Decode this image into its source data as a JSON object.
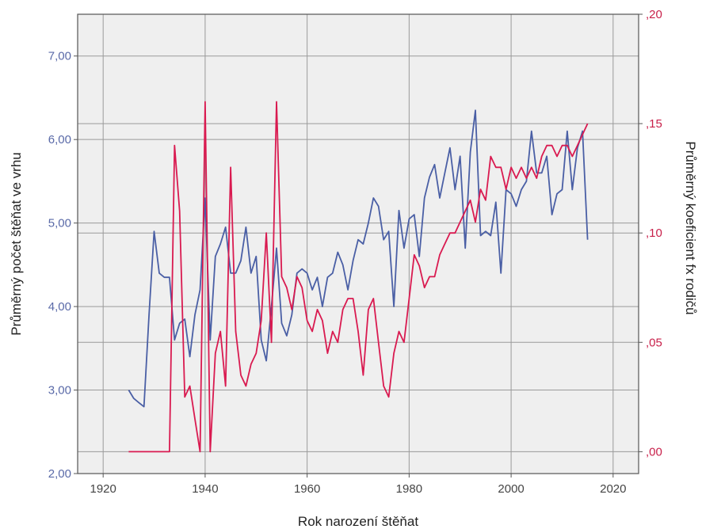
{
  "chart_data": {
    "type": "line",
    "title": "",
    "xlabel": "Rok narození štěňat",
    "ylabel_left": "Průměrný počet štěňat ve vrhu",
    "ylabel_right": "Průměrný koeficient fx rodičů",
    "xlim": [
      1915,
      2025
    ],
    "ylim_left": [
      2.0,
      7.5
    ],
    "ylim_right": [
      -0.01,
      0.2
    ],
    "x_ticks": [
      "1920",
      "1940",
      "1960",
      "1980",
      "2000",
      "2020"
    ],
    "x_tick_values": [
      1920,
      1940,
      1960,
      1980,
      2000,
      2020
    ],
    "left_ticks": [
      "2,00",
      "3,00",
      "4,00",
      "5,00",
      "6,00",
      "7,00"
    ],
    "left_tick_values": [
      2,
      3,
      4,
      5,
      6,
      7
    ],
    "right_ticks": [
      ",00",
      ",05",
      ",10",
      ",15",
      ",20"
    ],
    "right_tick_values": [
      0.0,
      0.05,
      0.1,
      0.15,
      0.2
    ],
    "grid": true,
    "colors": {
      "left_series": "#4a5fa5",
      "right_series": "#d91a50",
      "plot_bg": "#efefef"
    },
    "series": [
      {
        "axis": "left",
        "color": "#4a5fa5",
        "x": [
          1925,
          1926,
          1927,
          1928,
          1929,
          1930,
          1931,
          1932,
          1933,
          1934,
          1935,
          1936,
          1937,
          1938,
          1939,
          1940,
          1941,
          1942,
          1943,
          1944,
          1945,
          1946,
          1947,
          1948,
          1949,
          1950,
          1951,
          1952,
          1953,
          1954,
          1955,
          1956,
          1957,
          1958,
          1959,
          1960,
          1961,
          1962,
          1963,
          1964,
          1965,
          1966,
          1967,
          1968,
          1969,
          1970,
          1971,
          1972,
          1973,
          1974,
          1975,
          1976,
          1977,
          1978,
          1979,
          1980,
          1981,
          1982,
          1983,
          1984,
          1985,
          1986,
          1987,
          1988,
          1989,
          1990,
          1991,
          1992,
          1993,
          1994,
          1995,
          1996,
          1997,
          1998,
          1999,
          2000,
          2001,
          2002,
          2003,
          2004,
          2005,
          2006,
          2007,
          2008,
          2009,
          2010,
          2011,
          2012,
          2013,
          2014,
          2015
        ],
        "values": [
          3.0,
          2.9,
          2.85,
          2.8,
          3.9,
          4.9,
          4.4,
          4.35,
          4.35,
          3.6,
          3.8,
          3.85,
          3.4,
          3.9,
          4.2,
          5.3,
          3.6,
          4.6,
          4.75,
          4.95,
          4.4,
          4.4,
          4.55,
          4.95,
          4.4,
          4.6,
          3.6,
          3.35,
          4.0,
          4.7,
          3.8,
          3.65,
          3.9,
          4.4,
          4.45,
          4.4,
          4.2,
          4.35,
          4.0,
          4.35,
          4.4,
          4.65,
          4.5,
          4.2,
          4.55,
          4.8,
          4.75,
          5.0,
          5.3,
          5.2,
          4.8,
          4.9,
          4.0,
          5.15,
          4.7,
          5.05,
          5.1,
          4.6,
          5.3,
          5.55,
          5.7,
          5.3,
          5.6,
          5.9,
          5.4,
          5.8,
          4.7,
          5.85,
          6.35,
          4.85,
          4.9,
          4.85,
          5.25,
          4.4,
          5.4,
          5.35,
          5.2,
          5.4,
          5.5,
          6.1,
          5.6,
          5.6,
          5.8,
          5.1,
          5.35,
          5.4,
          6.1,
          5.4,
          5.9,
          6.1,
          4.8
        ]
      },
      {
        "axis": "right",
        "color": "#d91a50",
        "x": [
          1925,
          1926,
          1927,
          1928,
          1929,
          1930,
          1931,
          1932,
          1933,
          1934,
          1935,
          1936,
          1937,
          1938,
          1939,
          1940,
          1941,
          1942,
          1943,
          1944,
          1945,
          1946,
          1947,
          1948,
          1949,
          1950,
          1951,
          1952,
          1953,
          1954,
          1955,
          1956,
          1957,
          1958,
          1959,
          1960,
          1961,
          1962,
          1963,
          1964,
          1965,
          1966,
          1967,
          1968,
          1969,
          1970,
          1971,
          1972,
          1973,
          1974,
          1975,
          1976,
          1977,
          1978,
          1979,
          1980,
          1981,
          1982,
          1983,
          1984,
          1985,
          1986,
          1987,
          1988,
          1989,
          1990,
          1991,
          1992,
          1993,
          1994,
          1995,
          1996,
          1997,
          1998,
          1999,
          2000,
          2001,
          2002,
          2003,
          2004,
          2005,
          2006,
          2007,
          2008,
          2009,
          2010,
          2011,
          2012,
          2013,
          2014,
          2015
        ],
        "values": [
          0.0,
          0.0,
          0.0,
          0.0,
          0.0,
          0.0,
          0.0,
          0.0,
          0.0,
          0.14,
          0.11,
          0.025,
          0.03,
          0.015,
          0.0,
          0.16,
          0.0,
          0.045,
          0.055,
          0.03,
          0.13,
          0.055,
          0.035,
          0.03,
          0.04,
          0.045,
          0.06,
          0.1,
          0.05,
          0.16,
          0.08,
          0.075,
          0.065,
          0.08,
          0.075,
          0.06,
          0.055,
          0.065,
          0.06,
          0.045,
          0.055,
          0.05,
          0.065,
          0.07,
          0.07,
          0.055,
          0.035,
          0.065,
          0.07,
          0.05,
          0.03,
          0.025,
          0.045,
          0.055,
          0.05,
          0.07,
          0.09,
          0.085,
          0.075,
          0.08,
          0.08,
          0.09,
          0.095,
          0.1,
          0.1,
          0.105,
          0.11,
          0.115,
          0.105,
          0.12,
          0.115,
          0.135,
          0.13,
          0.13,
          0.12,
          0.13,
          0.125,
          0.13,
          0.125,
          0.13,
          0.125,
          0.135,
          0.14,
          0.14,
          0.135,
          0.14,
          0.14,
          0.135,
          0.14,
          0.145,
          0.15
        ]
      }
    ]
  }
}
